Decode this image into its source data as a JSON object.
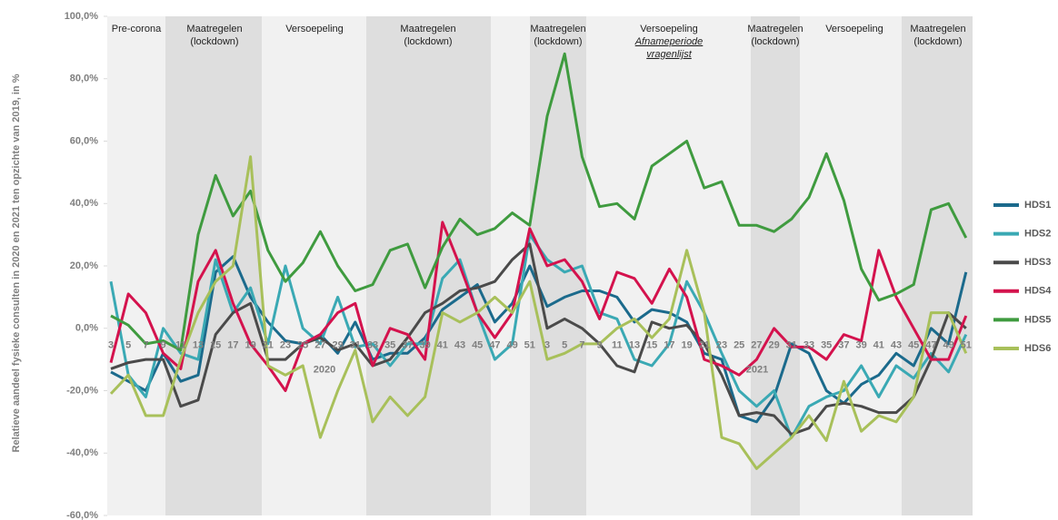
{
  "chart_data": {
    "type": "line",
    "y_label": "Relatieve aandeel fysieke consulten in 2020 en 2021 ten opzichte van 2019, in %",
    "categories": [
      "3",
      "5",
      "7",
      "9",
      "11",
      "13",
      "15",
      "17",
      "19",
      "21",
      "23",
      "25",
      "27",
      "29",
      "31",
      "33",
      "35",
      "37",
      "39",
      "41",
      "43",
      "45",
      "47",
      "49",
      "51",
      "3",
      "5",
      "7",
      "9",
      "11",
      "13",
      "15",
      "17",
      "19",
      "21",
      "23",
      "25",
      "27",
      "29",
      "31",
      "33",
      "35",
      "37",
      "39",
      "41",
      "43",
      "45",
      "47",
      "49",
      "51"
    ],
    "years": [
      "2020",
      "2021"
    ],
    "phases": [
      {
        "lines": [
          "Pre-corona"
        ]
      },
      {
        "lines": [
          "Maatregelen",
          "(lockdown)"
        ]
      },
      {
        "lines": [
          "Versoepeling"
        ]
      },
      {
        "lines": [
          "Maatregelen",
          "(lockdown)"
        ]
      },
      {
        "lines": [
          "Maatregelen",
          "(lockdown)"
        ]
      },
      {
        "lines": [
          "Versoepeling",
          "Afnameperiode",
          "vragenlijst"
        ]
      },
      {
        "lines": [
          "Maatregelen",
          "(lockdown)"
        ]
      },
      {
        "lines": [
          "Versoepeling"
        ]
      },
      {
        "lines": [
          "Maatregelen",
          "(lockdown)"
        ]
      }
    ],
    "ylim": [
      -60,
      100
    ],
    "yticks": [
      {
        "value": -60,
        "label": "-60,0%"
      },
      {
        "value": -40,
        "label": "-40,0%"
      },
      {
        "value": -20,
        "label": "-20,0%"
      },
      {
        "value": 0,
        "label": "0,0%"
      },
      {
        "value": 20,
        "label": "20,0%"
      },
      {
        "value": 40,
        "label": "40,0%"
      },
      {
        "value": 60,
        "label": "60,0%"
      },
      {
        "value": 80,
        "label": "80,0%"
      },
      {
        "value": 100,
        "label": "100,0%"
      }
    ],
    "series": [
      {
        "name": "HDS1",
        "color": "#1b6a8c",
        "values": [
          -14,
          -17,
          -20,
          -8,
          -17,
          -15,
          18,
          23,
          10,
          2,
          -4,
          -5,
          -2,
          -8,
          2,
          -10,
          -8,
          -8,
          -3,
          6,
          10,
          14,
          2,
          8,
          20,
          7,
          10,
          12,
          12,
          10,
          2,
          6,
          5,
          2,
          -8,
          -10,
          -28,
          -30,
          -22,
          -5,
          -8,
          -20,
          -24,
          -18,
          -15,
          -8,
          -12,
          0,
          -5,
          18
        ]
      },
      {
        "name": "HDS2",
        "color": "#3aa9b4",
        "values": [
          15,
          -15,
          -22,
          0,
          -8,
          -10,
          22,
          5,
          13,
          -5,
          20,
          0,
          -5,
          10,
          -6,
          -5,
          -12,
          -5,
          -5,
          16,
          22,
          5,
          -10,
          -5,
          30,
          22,
          18,
          20,
          5,
          3,
          -10,
          -12,
          -5,
          15,
          5,
          -8,
          -20,
          -25,
          -20,
          -35,
          -25,
          -22,
          -20,
          -12,
          -22,
          -12,
          -16,
          -8,
          -14,
          -2
        ]
      },
      {
        "name": "HDS3",
        "color": "#4a4a4a",
        "values": [
          -13,
          -11,
          -10,
          -10,
          -25,
          -23,
          -2,
          5,
          8,
          -10,
          -10,
          -5,
          -3,
          -7,
          -5,
          -12,
          -10,
          -3,
          5,
          8,
          12,
          13,
          15,
          22,
          27,
          0,
          3,
          0,
          -5,
          -12,
          -14,
          2,
          0,
          1,
          -5,
          -15,
          -28,
          -27,
          -28,
          -34,
          -32,
          -25,
          -24,
          -25,
          -27,
          -27,
          -22,
          -10,
          5,
          0
        ]
      },
      {
        "name": "HDS4",
        "color": "#d4124d",
        "values": [
          -11,
          11,
          5,
          -8,
          -13,
          15,
          25,
          8,
          -5,
          -12,
          -20,
          -5,
          -2,
          5,
          8,
          -12,
          0,
          -2,
          -10,
          34,
          20,
          5,
          -3,
          5,
          32,
          20,
          22,
          15,
          3,
          18,
          16,
          8,
          19,
          10,
          -10,
          -12,
          -15,
          -10,
          0,
          -6,
          -6,
          -10,
          -2,
          -4,
          25,
          10,
          0,
          -10,
          -10,
          4
        ]
      },
      {
        "name": "HDS5",
        "color": "#3f9b3f",
        "values": [
          4,
          1,
          -5,
          -4,
          -7,
          30,
          49,
          36,
          44,
          25,
          15,
          21,
          31,
          20,
          12,
          14,
          25,
          27,
          13,
          26,
          35,
          30,
          32,
          37,
          33,
          68,
          88,
          55,
          39,
          40,
          35,
          52,
          56,
          60,
          45,
          47,
          33,
          33,
          31,
          35,
          42,
          56,
          41,
          19,
          9,
          11,
          14,
          38,
          40,
          29
        ]
      },
      {
        "name": "HDS6",
        "color": "#a8c05a",
        "values": [
          -21,
          -15,
          -28,
          -28,
          -10,
          5,
          15,
          20,
          55,
          -12,
          -15,
          -12,
          -35,
          -20,
          -7,
          -30,
          -22,
          -28,
          -22,
          5,
          2,
          5,
          10,
          5,
          15,
          -10,
          -8,
          -5,
          -5,
          0,
          3,
          -3,
          3,
          25,
          5,
          -35,
          -37,
          -45,
          -40,
          -35,
          -28,
          -36,
          -17,
          -33,
          -28,
          -30,
          -22,
          5,
          5,
          -8
        ]
      }
    ]
  }
}
